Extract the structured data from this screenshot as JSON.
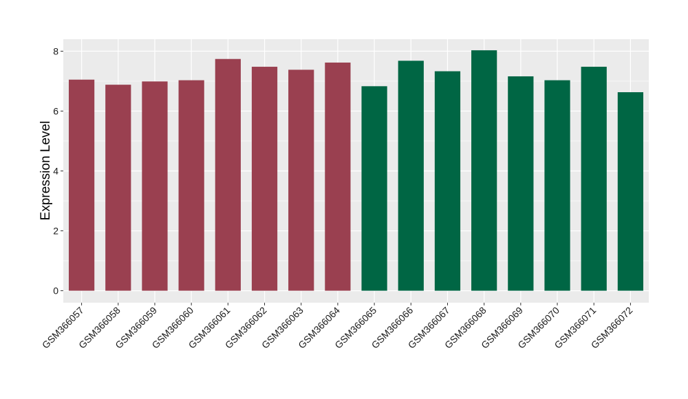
{
  "chart_data": {
    "type": "bar",
    "title": "",
    "xlabel": "",
    "ylabel": "Expression Level",
    "ylim": [
      -0.4,
      8.4
    ],
    "yticks": [
      0,
      2,
      4,
      6,
      8
    ],
    "grid": true,
    "categories": [
      "GSM366057",
      "GSM366058",
      "GSM366059",
      "GSM366060",
      "GSM366061",
      "GSM366062",
      "GSM366063",
      "GSM366064",
      "GSM366065",
      "GSM366066",
      "GSM366067",
      "GSM366068",
      "GSM366069",
      "GSM366070",
      "GSM366071",
      "GSM366072"
    ],
    "values": [
      7.05,
      6.88,
      6.99,
      7.03,
      7.74,
      7.48,
      7.38,
      7.62,
      6.83,
      7.68,
      7.33,
      8.03,
      7.16,
      7.03,
      7.48,
      6.63
    ],
    "groups": [
      0,
      0,
      0,
      0,
      0,
      0,
      0,
      0,
      1,
      1,
      1,
      1,
      1,
      1,
      1,
      1
    ],
    "group_colors": [
      "#9a4050",
      "#006644"
    ],
    "panel_color": "#ebebeb",
    "grid_color": "#ffffff"
  }
}
